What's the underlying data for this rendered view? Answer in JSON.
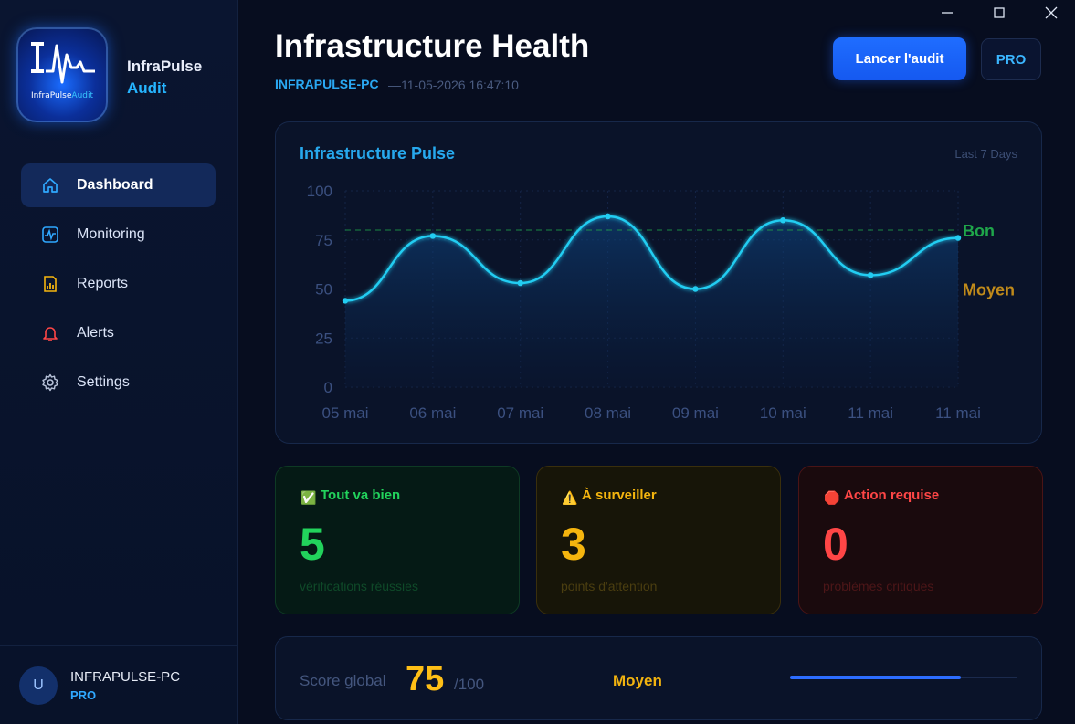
{
  "app": {
    "brand_line1": "InfraPulse",
    "brand_line2": "Audit",
    "logo_text_main": "InfraPulse",
    "logo_text_accent": "Audit"
  },
  "sidebar": {
    "items": [
      {
        "label": "Dashboard",
        "icon": "home-icon",
        "active": true
      },
      {
        "label": "Monitoring",
        "icon": "pulse-icon"
      },
      {
        "label": "Reports",
        "icon": "report-icon"
      },
      {
        "label": "Alerts",
        "icon": "bell-icon"
      },
      {
        "label": "Settings",
        "icon": "gear-icon"
      }
    ],
    "user": {
      "avatar_letter": "U",
      "name": "INFRAPULSE-PC",
      "plan": "PRO"
    }
  },
  "header": {
    "title": "Infrastructure Health",
    "host": "INFRAPULSE-PC",
    "timestamp": "—11-05-2026 16:47:10",
    "audit_button": "Lancer l'audit",
    "pro_button": "PRO"
  },
  "chart_card": {
    "title": "Infrastructure Pulse",
    "range": "Last 7 Days"
  },
  "chart_data": {
    "type": "line",
    "x": [
      "05 mai",
      "06 mai",
      "07 mai",
      "08 mai",
      "09 mai",
      "10 mai",
      "11 mai",
      "11 mai"
    ],
    "series": [
      {
        "values": [
          44,
          77,
          53,
          87,
          50,
          85,
          57,
          76
        ]
      }
    ],
    "ylim": [
      0,
      100
    ],
    "yticks": [
      0,
      25,
      50,
      75,
      100
    ],
    "reference_lines": [
      {
        "label": "Bon",
        "value": 80,
        "color": "#1fa64a"
      },
      {
        "label": "Moyen",
        "value": 50,
        "color": "#c08a1a"
      }
    ],
    "line_color": "#22cdf2",
    "grid": true
  },
  "stats": [
    {
      "emoji": "✅",
      "label": "Tout va bien",
      "value": "5",
      "sub": "vérifications réussies",
      "color": "#22d35c"
    },
    {
      "emoji": "⚠️",
      "label": "À surveiller",
      "value": "3",
      "sub": "points d'attention",
      "color": "#f5b50e"
    },
    {
      "emoji": "🛑",
      "label": "Action requise",
      "value": "0",
      "sub": "problèmes critiques",
      "color": "#ff4646"
    }
  ],
  "score": {
    "label": "Score global",
    "value": "75",
    "max": "/100",
    "level": "Moyen",
    "progress_fraction": 0.75
  }
}
